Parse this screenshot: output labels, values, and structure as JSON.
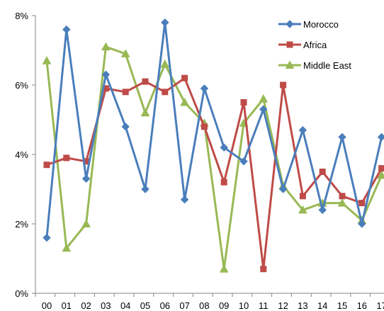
{
  "chart_data": {
    "type": "line",
    "title": "",
    "xlabel": "",
    "ylabel": "",
    "categories": [
      "00",
      "01",
      "02",
      "03",
      "04",
      "05",
      "06",
      "07",
      "08",
      "09",
      "10",
      "11",
      "12",
      "13",
      "14",
      "15",
      "16",
      "17"
    ],
    "ylim": [
      0,
      8
    ],
    "yticks": [
      0,
      2,
      4,
      6,
      8
    ],
    "ytick_labels": [
      "0%",
      "2%",
      "4%",
      "6%",
      "8%"
    ],
    "grid": false,
    "legend_position": "top-right",
    "series": [
      {
        "name": "Morocco",
        "color": "#4a7ebb",
        "marker": "diamond",
        "values": [
          1.6,
          7.6,
          3.3,
          6.3,
          4.8,
          3.0,
          7.8,
          2.7,
          5.9,
          4.2,
          3.8,
          5.3,
          3.0,
          4.7,
          2.4,
          4.5,
          2.0,
          4.5
        ]
      },
      {
        "name": "Africa",
        "color": "#be4b48",
        "marker": "square",
        "values": [
          3.7,
          3.9,
          3.8,
          5.9,
          5.8,
          6.1,
          5.8,
          6.2,
          4.8,
          3.2,
          5.5,
          0.7,
          6.0,
          2.8,
          3.5,
          2.8,
          2.6,
          3.6
        ]
      },
      {
        "name": "Middle East",
        "color": "#98b954",
        "marker": "triangle",
        "values": [
          6.7,
          1.3,
          2.0,
          7.1,
          6.9,
          5.2,
          6.6,
          5.5,
          4.9,
          0.7,
          4.9,
          5.6,
          3.1,
          2.4,
          2.6,
          2.6,
          2.1,
          3.4
        ]
      }
    ]
  }
}
